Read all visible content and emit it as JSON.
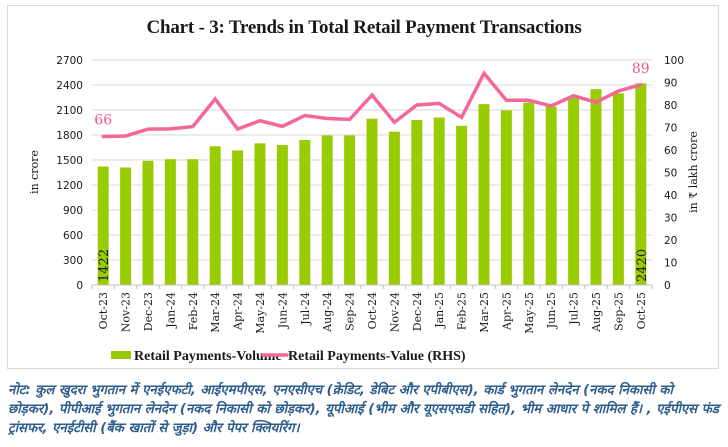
{
  "chart_data": {
    "type": "bar",
    "title": "Chart - 3: Trends in Total Retail Payment Transactions",
    "categories": [
      "Oct-23",
      "Nov-23",
      "Dec-23",
      "Jan-24",
      "Feb-24",
      "Mar-24",
      "Apr-24",
      "May-24",
      "Jun-24",
      "Jul-24",
      "Aug-24",
      "Sep-24",
      "Oct-24",
      "Nov-24",
      "Dec-24",
      "Jan-25",
      "Feb-25",
      "Mar-25",
      "Apr-25",
      "May-25",
      "Jun-25",
      "Jul-25",
      "Aug-25",
      "Sep-25",
      "Oct-25"
    ],
    "series": [
      {
        "name": "Retail Payments-Volume",
        "type": "bar",
        "axis": "left",
        "color": "#99cc00",
        "values": [
          1422,
          1410,
          1490,
          1510,
          1510,
          1665,
          1615,
          1700,
          1680,
          1740,
          1795,
          1795,
          1995,
          1840,
          1980,
          2010,
          1910,
          2170,
          2095,
          2190,
          2140,
          2250,
          2350,
          2300,
          2420
        ],
        "data_labels": {
          "0": "1422",
          "24": "2420"
        }
      },
      {
        "name": "Retail Payments-Value (RHS)",
        "type": "line",
        "axis": "right",
        "color": "#f5679b",
        "values": [
          66,
          66.2,
          69.3,
          69.4,
          70.4,
          82.7,
          69.3,
          73.0,
          70.5,
          75.3,
          74.0,
          73.6,
          84.4,
          72.3,
          80.0,
          80.7,
          74.5,
          94.1,
          82.1,
          82.1,
          79.6,
          84.1,
          81.2,
          86.2,
          89
        ],
        "data_labels": {
          "0": "66",
          "24": "89"
        }
      }
    ],
    "xlabel": "",
    "ylabel": "in crore",
    "ylabel_right": "in ₹ lakh crore",
    "ylim": [
      0,
      2700
    ],
    "ylim_right": [
      0,
      100
    ],
    "yticks": [
      0,
      300,
      600,
      900,
      1200,
      1500,
      1800,
      2100,
      2400,
      2700
    ],
    "yticks_right": [
      0,
      10,
      20,
      30,
      40,
      50,
      60,
      70,
      80,
      90,
      100
    ],
    "grid": true,
    "legend_position": "bottom"
  },
  "note": "नोट: कुल खुदरा भुगतान में एनईएफटी, आईएमपीएस, एनएसीएच (क्रेडिट, डेबिट और एपीबीएस), कार्ड भुगतान लेनदेन (नकद निकासी को छोड़कर), पीपीआई भुगतान लेनदेन (नकद निकासी को छोड़कर), यूपीआई (भीम और यूएसएसडी सहित), भीम आधार पे शामिल हैं। , एईपीएस फंड ट्रांसफर, एनईटीसी (बैंक खातों से जुड़ा) और पेपर क्लियरिंग।"
}
